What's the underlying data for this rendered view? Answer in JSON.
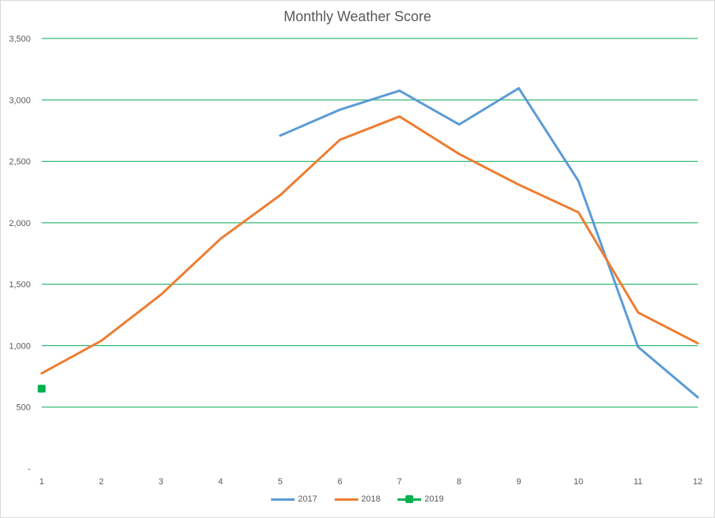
{
  "chart_data": {
    "type": "line",
    "title": "Monthly Weather Score",
    "xlabel": "",
    "ylabel": "",
    "categories": [
      "1",
      "2",
      "3",
      "4",
      "5",
      "6",
      "7",
      "8",
      "9",
      "10",
      "11",
      "12"
    ],
    "ylim": [
      0,
      3500
    ],
    "yticks": [
      0,
      500,
      1000,
      1500,
      2000,
      2500,
      3000,
      3500
    ],
    "ytick_labels": [
      "-",
      "500",
      "1,000",
      "1,500",
      "2,000",
      "2,500",
      "3,000",
      "3,500"
    ],
    "grid": "horizontal",
    "legend_position": "bottom",
    "series": [
      {
        "name": "2017",
        "color": "#5b9bd5",
        "marker": "none",
        "values": [
          null,
          null,
          null,
          null,
          2710,
          2920,
          3075,
          2800,
          3095,
          2340,
          990,
          580
        ]
      },
      {
        "name": "2018",
        "color": "#ed7d31",
        "marker": "none",
        "values": [
          775,
          1040,
          1415,
          1870,
          2225,
          2675,
          2865,
          2560,
          2310,
          2085,
          1270,
          1020
        ]
      },
      {
        "name": "2019",
        "color": "#00b050",
        "marker": "square",
        "values": [
          650,
          null,
          null,
          null,
          null,
          null,
          null,
          null,
          null,
          null,
          null,
          null
        ]
      }
    ]
  }
}
